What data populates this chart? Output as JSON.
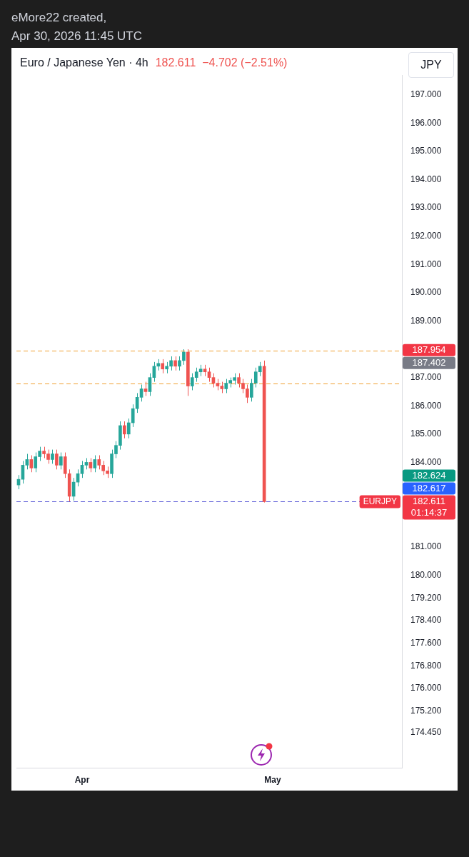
{
  "chart_data": {
    "type": "candlestick",
    "title": "Euro / Japanese Yen · 4h",
    "subtitle": "182.611  −4.702 (−2.51%)",
    "annotations": [
      "eMore22 created,",
      "Apr 30, 2026 11:45 UTC",
      "JPY",
      "01:14:37",
      "187.402",
      "182.624",
      "182.617",
      "182.611"
    ],
    "categories": [
      null,
      null,
      null,
      null,
      null,
      null,
      null,
      null,
      null,
      null,
      null,
      null,
      null,
      null,
      null,
      "Apr",
      null,
      null,
      null,
      null,
      null,
      null,
      null,
      null,
      null,
      null,
      null,
      null,
      null,
      null,
      null,
      null,
      null,
      null,
      null,
      null,
      null,
      null,
      null,
      null,
      null,
      null,
      null,
      null,
      null,
      null,
      null,
      null,
      null,
      null,
      null,
      null,
      null,
      null,
      null,
      null,
      null,
      null,
      null,
      null,
      "May",
      null,
      null,
      null,
      null,
      null,
      null,
      null,
      null,
      null,
      null,
      null,
      null,
      null,
      null,
      null,
      null,
      null,
      null,
      null,
      null,
      null,
      null,
      null,
      null,
      null,
      null,
      null,
      null,
      null,
      null
    ],
    "ohlc": [
      [
        183.2,
        183.55,
        183.05,
        183.4
      ],
      [
        183.4,
        184.05,
        183.25,
        183.9
      ],
      [
        183.9,
        184.3,
        183.75,
        184.1
      ],
      [
        184.1,
        184.25,
        183.65,
        183.8
      ],
      [
        183.8,
        184.35,
        183.65,
        184.2
      ],
      [
        184.2,
        184.55,
        184.05,
        184.4
      ],
      [
        184.4,
        184.55,
        184.15,
        184.3
      ],
      [
        184.3,
        184.45,
        183.95,
        184.1
      ],
      [
        184.1,
        184.45,
        183.95,
        184.3
      ],
      [
        184.3,
        184.45,
        183.75,
        183.9
      ],
      [
        183.9,
        184.35,
        183.75,
        184.2
      ],
      [
        184.2,
        184.35,
        183.45,
        183.6
      ],
      [
        183.6,
        183.75,
        182.611,
        182.8
      ],
      [
        182.8,
        183.45,
        182.65,
        183.3
      ],
      [
        183.3,
        183.75,
        183.15,
        183.6
      ],
      [
        183.6,
        184.05,
        183.45,
        183.9
      ],
      [
        183.9,
        184.15,
        183.75,
        184.0
      ],
      [
        184.0,
        184.15,
        183.65,
        183.8
      ],
      [
        183.8,
        184.25,
        183.65,
        184.1
      ],
      [
        184.1,
        184.25,
        183.75,
        183.9
      ],
      [
        183.9,
        184.05,
        183.55,
        183.7
      ],
      [
        183.7,
        183.85,
        183.45,
        183.6
      ],
      [
        183.6,
        184.45,
        183.45,
        184.3
      ],
      [
        184.3,
        184.75,
        184.15,
        184.6
      ],
      [
        184.6,
        185.45,
        184.45,
        185.3
      ],
      [
        185.3,
        185.45,
        184.85,
        185.0
      ],
      [
        185.0,
        185.55,
        184.85,
        185.4
      ],
      [
        185.4,
        186.05,
        185.25,
        185.9
      ],
      [
        185.9,
        186.45,
        185.75,
        186.3
      ],
      [
        186.3,
        186.75,
        186.15,
        186.6
      ],
      [
        186.6,
        186.85,
        186.35,
        186.5
      ],
      [
        186.5,
        187.15,
        186.35,
        187.0
      ],
      [
        187.0,
        187.55,
        186.85,
        187.4
      ],
      [
        187.4,
        187.65,
        187.25,
        187.5
      ],
      [
        187.5,
        187.65,
        187.15,
        187.3
      ],
      [
        187.3,
        187.55,
        187.15,
        187.4
      ],
      [
        187.4,
        187.75,
        187.25,
        187.6
      ],
      [
        187.6,
        187.75,
        187.25,
        187.4
      ],
      [
        187.4,
        187.75,
        187.25,
        187.6
      ],
      [
        187.6,
        188.0,
        187.45,
        187.9
      ],
      [
        187.9,
        188.0,
        186.35,
        186.7
      ],
      [
        186.7,
        187.15,
        186.55,
        187.0
      ],
      [
        187.0,
        187.35,
        186.85,
        187.2
      ],
      [
        187.2,
        187.45,
        187.05,
        187.3
      ],
      [
        187.3,
        187.45,
        187.05,
        187.2
      ],
      [
        187.2,
        187.35,
        186.85,
        187.0
      ],
      [
        187.0,
        187.15,
        186.65,
        186.8
      ],
      [
        186.8,
        186.95,
        186.55,
        186.7
      ],
      [
        186.7,
        186.85,
        186.45,
        186.6
      ],
      [
        186.6,
        186.95,
        186.45,
        186.8
      ],
      [
        186.8,
        187.0,
        186.65,
        186.9
      ],
      [
        186.9,
        187.15,
        186.75,
        187.0
      ],
      [
        187.0,
        187.15,
        186.65,
        186.8
      ],
      [
        186.8,
        186.95,
        186.45,
        186.6
      ],
      [
        186.6,
        186.75,
        186.1,
        186.3
      ],
      [
        186.3,
        186.95,
        186.15,
        186.8
      ],
      [
        186.8,
        187.35,
        186.65,
        187.2
      ],
      [
        187.2,
        187.55,
        187.05,
        187.4
      ],
      [
        187.4,
        187.6,
        182.58,
        182.611
      ],
      null,
      null,
      null,
      null,
      null,
      null,
      null,
      null,
      null,
      null,
      null,
      null,
      null,
      null,
      null,
      null,
      null,
      null,
      null,
      null,
      null,
      null,
      null,
      null,
      null,
      null,
      null,
      null,
      null,
      null,
      null,
      null
    ],
    "colors": [
      "#26a69a",
      "#26a69a",
      "#26a69a",
      "#ef5350",
      "#26a69a",
      "#26a69a",
      "#ef5350",
      "#ef5350",
      "#26a69a",
      "#ef5350",
      "#26a69a",
      "#ef5350",
      "#ef5350",
      "#26a69a",
      "#26a69a",
      "#26a69a",
      "#26a69a",
      "#ef5350",
      "#26a69a",
      "#ef5350",
      "#ef5350",
      "#ef5350",
      "#26a69a",
      "#26a69a",
      "#26a69a",
      "#ef5350",
      "#26a69a",
      "#26a69a",
      "#26a69a",
      "#26a69a",
      "#ef5350",
      "#26a69a",
      "#26a69a",
      "#26a69a",
      "#ef5350",
      "#26a69a",
      "#26a69a",
      "#ef5350",
      "#26a69a",
      "#26a69a",
      "#ef5350",
      "#26a69a",
      "#26a69a",
      "#26a69a",
      "#ef5350",
      "#ef5350",
      "#ef5350",
      "#ef5350",
      "#ef5350",
      "#26a69a",
      "#26a69a",
      "#26a69a",
      "#ef5350",
      "#ef5350",
      "#ef5350",
      "#26a69a",
      "#26a69a",
      "#26a69a",
      "#ef5350",
      null,
      null,
      null,
      null,
      null,
      null,
      null,
      null,
      null,
      null,
      null,
      null,
      null,
      null,
      null,
      null,
      null,
      null,
      null,
      null,
      null,
      null,
      null,
      null,
      null,
      null,
      null,
      null,
      null,
      null,
      null,
      null
    ],
    "ylim": [
      173.2,
      197.7
    ],
    "yticks": [
      {
        "value": 197,
        "label": "197.000"
      },
      {
        "value": 196,
        "label": "196.000"
      },
      {
        "value": 195,
        "label": "195.000"
      },
      {
        "value": 194,
        "label": "194.000"
      },
      {
        "value": 193,
        "label": "193.000"
      },
      {
        "value": 192,
        "label": "192.000"
      },
      {
        "value": 191,
        "label": "191.000"
      },
      {
        "value": 190,
        "label": "190.000"
      },
      {
        "value": 189,
        "label": "189.000"
      },
      {
        "value": 187,
        "label": "187.000"
      },
      {
        "value": 186,
        "label": "186.000"
      },
      {
        "value": 185,
        "label": "185.000"
      },
      {
        "value": 184,
        "label": "184.000"
      },
      {
        "value": 181,
        "label": "181.000"
      },
      {
        "value": 180,
        "label": "180.000"
      },
      {
        "value": 179.2,
        "label": "179.200"
      },
      {
        "value": 178.4,
        "label": "178.400"
      },
      {
        "value": 177.6,
        "label": "177.600"
      },
      {
        "value": 176.8,
        "label": "176.800"
      },
      {
        "value": 176,
        "label": "176.000"
      },
      {
        "value": 175.2,
        "label": "175.200"
      },
      {
        "value": 174.45,
        "label": "174.450"
      }
    ],
    "ref_lines": [
      {
        "axis": "y",
        "value": 187.954,
        "color": "#f0a030",
        "line_style": "dashed",
        "label": "187.954"
      },
      {
        "axis": "y",
        "value": 186.8,
        "color": "#f0a030",
        "line_style": "dashed"
      },
      {
        "axis": "y",
        "value": 182.611,
        "color": "#5b5bd6",
        "line_style": "dashed",
        "label": "EURJPY"
      }
    ]
  }
}
